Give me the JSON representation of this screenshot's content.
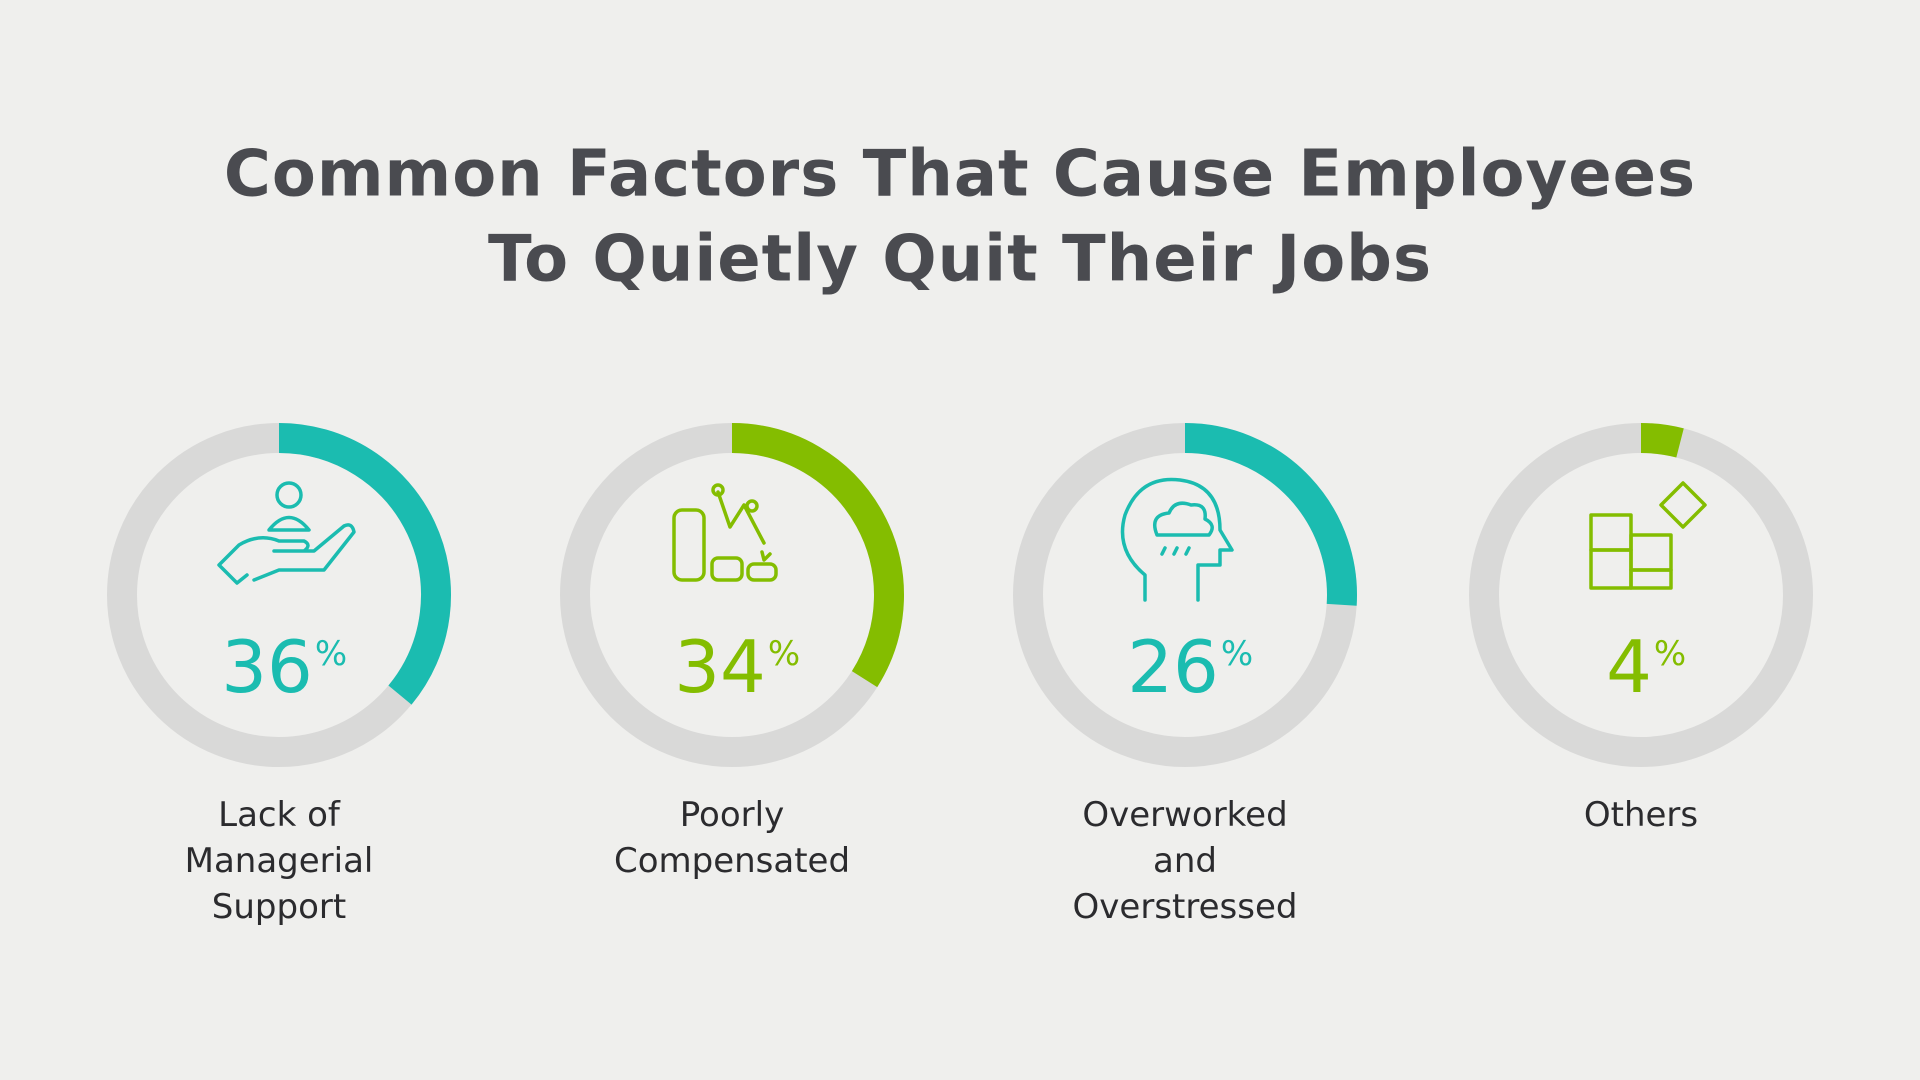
{
  "chart_data": {
    "type": "donut-gauge",
    "title": [
      "Common Factors That Cause Employees",
      "To Quietly Quit Their Jobs"
    ],
    "categories": [
      "Lack of Managerial Support",
      "Poorly Compensated",
      "Overworked and Overstressed",
      "Others"
    ],
    "values": [
      36,
      34,
      26,
      4
    ],
    "unit": "%",
    "ylim": [
      0,
      100
    ],
    "colors": [
      "#1bbcb0",
      "#84bd00",
      "#1bbcb0",
      "#84bd00"
    ],
    "track_color": "#d9d9d8"
  }
}
